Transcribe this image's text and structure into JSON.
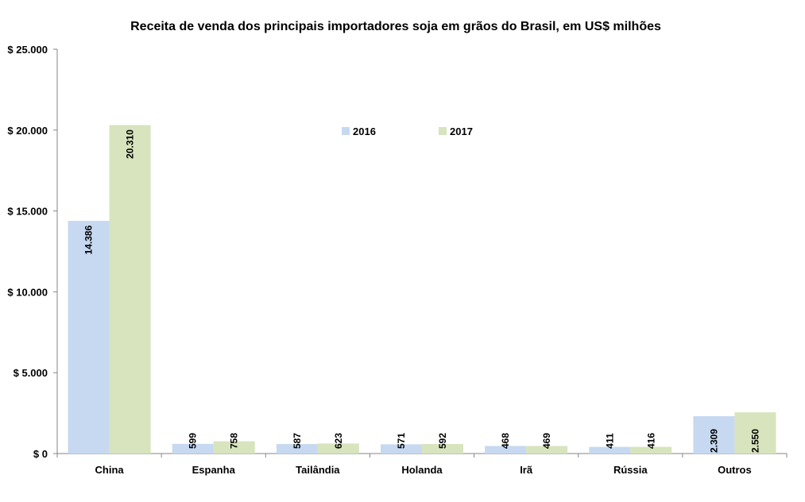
{
  "chart_data": {
    "type": "bar",
    "title": "Receita de venda dos principais importadores soja em grãos do Brasil, em US$ milhões",
    "xlabel": "",
    "ylabel": "",
    "ylim": [
      0,
      25000
    ],
    "yticks": [
      0,
      5000,
      10000,
      15000,
      20000,
      25000
    ],
    "ytick_labels": [
      "$ 0",
      "$ 5.000",
      "$ 10.000",
      "$ 15.000",
      "$ 20.000",
      "$ 25.000"
    ],
    "categories": [
      "China",
      "Espanha",
      "Tailândia",
      "Holanda",
      "Irã",
      "Rússia",
      "Outros"
    ],
    "series": [
      {
        "name": "2016",
        "color": "#c6d9f1",
        "values": [
          14386,
          599,
          587,
          571,
          468,
          411,
          2309
        ],
        "labels": [
          "14.386",
          "599",
          "587",
          "571",
          "468",
          "411",
          "2.309"
        ]
      },
      {
        "name": "2017",
        "color": "#d7e4bd",
        "values": [
          20310,
          758,
          623,
          592,
          469,
          416,
          2550
        ],
        "labels": [
          "20.310",
          "758",
          "623",
          "592",
          "469",
          "416",
          "2.550"
        ]
      }
    ],
    "legend_position": "top-center",
    "grid": false
  }
}
